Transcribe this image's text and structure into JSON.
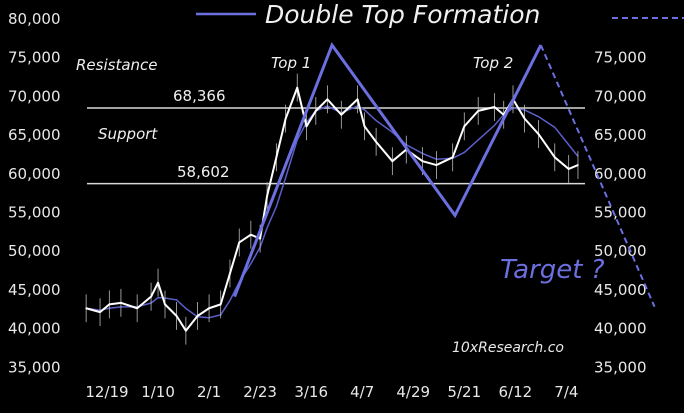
{
  "chart_data": {
    "type": "line",
    "title": "Double Top Formation",
    "xlabel": "",
    "ylabel": "",
    "ylim": [
      35000,
      80000
    ],
    "y_ticks": [
      "80,000",
      "75,000",
      "70,000",
      "65,000",
      "60,000",
      "55,000",
      "50,000",
      "45,000",
      "40,000",
      "35,000"
    ],
    "y_ticks_right": [
      "75,000",
      "70,000",
      "65,000",
      "60,000",
      "55,000",
      "50,000",
      "45,000",
      "40,000",
      "35,000"
    ],
    "x_ticks": [
      "12/19",
      "1/10",
      "2/1",
      "2/23",
      "3/16",
      "4/7",
      "4/29",
      "5/21",
      "6/12",
      "7/4"
    ],
    "grid": false,
    "legend": "top",
    "colors": {
      "background": "#000000",
      "price": "#ffffff",
      "average": "#5b5fc7",
      "pattern": "#6b6fe0",
      "levels": "#d8d8d8",
      "text": "#f0f0f0"
    },
    "price_series": {
      "dates": [
        "12/10",
        "12/16",
        "12/20",
        "12/25",
        "1/1",
        "1/7",
        "1/10",
        "1/13",
        "1/18",
        "1/22",
        "1/27",
        "2/1",
        "2/6",
        "2/10",
        "2/14",
        "2/19",
        "2/23",
        "2/26",
        "3/1",
        "3/5",
        "3/10",
        "3/14",
        "3/18",
        "3/23",
        "3/29",
        "4/5",
        "4/8",
        "4/13",
        "4/20",
        "4/26",
        "5/3",
        "5/9",
        "5/16",
        "5/21",
        "5/27",
        "6/3",
        "6/7",
        "6/11",
        "6/16",
        "6/22",
        "6/29",
        "7/5",
        "7/9"
      ],
      "values": [
        42500,
        42000,
        43000,
        43200,
        42500,
        44000,
        45800,
        43000,
        41500,
        39600,
        41500,
        42500,
        43000,
        47000,
        51000,
        52000,
        51500,
        57000,
        62000,
        67000,
        71000,
        66000,
        68000,
        69500,
        67500,
        69500,
        66000,
        64000,
        61500,
        63000,
        61500,
        61000,
        62000,
        66000,
        68000,
        68500,
        67500,
        69500,
        67000,
        65000,
        62000,
        60500,
        61000
      ]
    },
    "pattern_line": {
      "dates": [
        "2/12",
        "3/25",
        "5/17",
        "6/23"
      ],
      "values": [
        44000,
        76500,
        54500,
        76500
      ]
    },
    "projection_line": {
      "dates": [
        "6/23",
        "8/11"
      ],
      "values": [
        76500,
        42700
      ]
    },
    "levels": [
      {
        "label": "Resistance",
        "value": 68366,
        "value_label": "68,366"
      },
      {
        "label": "Support",
        "value": 58602,
        "value_label": "58,602"
      }
    ],
    "annotations": {
      "top1": "Top 1",
      "top2": "Top 2",
      "target": "Target ?",
      "source": "10xResearch.co"
    }
  }
}
